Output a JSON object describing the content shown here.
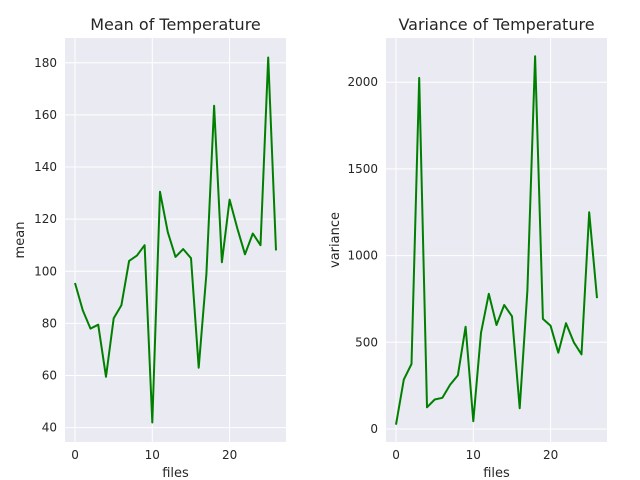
{
  "chart_data": [
    {
      "type": "line",
      "title": "Mean of Temperature",
      "xlabel": "files",
      "ylabel": "mean",
      "xlim": [
        -1.3,
        27.3
      ],
      "ylim": [
        34.5,
        189.5
      ],
      "xticks": [
        0,
        10,
        20
      ],
      "yticks": [
        40,
        60,
        80,
        100,
        120,
        140,
        160,
        180
      ],
      "grid": true,
      "color": "#008000",
      "series": [
        {
          "x": [
            0,
            1,
            2,
            3,
            4,
            5,
            6,
            7,
            8,
            9,
            10,
            11,
            12,
            13,
            14,
            15,
            16,
            17,
            18,
            19,
            20,
            21,
            22,
            23,
            24,
            25,
            26
          ],
          "values": [
            95.5,
            85,
            78,
            79.5,
            59.5,
            82,
            87,
            104,
            106,
            110,
            42,
            130.5,
            115,
            105.5,
            108.5,
            105,
            63,
            99,
            163.5,
            103.5,
            127.5,
            116.5,
            106.5,
            114.5,
            110,
            182,
            108
          ]
        }
      ]
    },
    {
      "type": "line",
      "title": "Variance of Temperature",
      "xlabel": "files",
      "ylabel": "variance",
      "xlim": [
        -1.3,
        27.3
      ],
      "ylim": [
        -75,
        2255
      ],
      "xticks": [
        0,
        10,
        20
      ],
      "yticks": [
        0,
        500,
        1000,
        1500,
        2000
      ],
      "grid": true,
      "color": "#008000",
      "series": [
        {
          "x": [
            0,
            1,
            2,
            3,
            4,
            5,
            6,
            7,
            8,
            9,
            10,
            11,
            12,
            13,
            14,
            15,
            16,
            17,
            18,
            19,
            20,
            21,
            22,
            23,
            24,
            25,
            26
          ],
          "values": [
            25,
            285,
            375,
            2025,
            125,
            170,
            180,
            255,
            310,
            590,
            45,
            555,
            780,
            600,
            715,
            650,
            120,
            800,
            2150,
            635,
            595,
            440,
            610,
            500,
            430,
            1250,
            755
          ]
        }
      ]
    }
  ]
}
